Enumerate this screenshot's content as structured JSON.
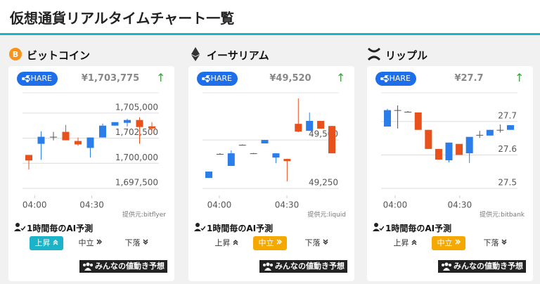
{
  "header": {
    "title": "仮想通貨リアルタイムチャート一覧"
  },
  "cards": [
    {
      "name": "ビットコイン",
      "share": "SHARE",
      "price": "¥1,703,775",
      "trend": "↑",
      "source": "提供元:bitflyer",
      "forecast_title": "1時間毎のAI予測",
      "buttons": [
        "上昇",
        "中立",
        "下落"
      ],
      "selected": 0,
      "vote": "みんなの値動き予想",
      "chart": {
        "type": "candlestick",
        "up_color": "#2b7de9",
        "down_color": "#e8501c",
        "flat_color": "#555555",
        "open": [
          1700830,
          1701940,
          1702640,
          1703130,
          1702220,
          1701530,
          1702570,
          1703750,
          1704030,
          1704310,
          1703680
        ],
        "high": [
          1700830,
          1703190,
          1703130,
          1703820,
          1702570,
          1702570,
          1703960,
          1704100,
          1704440,
          1704580,
          1704100
        ],
        "low": [
          1699380,
          1700350,
          1702290,
          1702290,
          1701740,
          1700560,
          1702570,
          1703750,
          1703680,
          1701940,
          1702990
        ],
        "close": [
          1700280,
          1702640,
          1702640,
          1702290,
          1701880,
          1702570,
          1703750,
          1704100,
          1704310,
          1703610,
          1703470
        ],
        "ylim": [
          1696800,
          1706460
        ],
        "yticks": [
          {
            "value": 1705000,
            "label": "1,705,000"
          },
          {
            "value": 1702500,
            "label": "1,702,500"
          },
          {
            "value": 1700000,
            "label": "1,700,000"
          },
          {
            "value": 1697500,
            "label": "1,697,500"
          }
        ],
        "xticks": [
          {
            "value": 0.47,
            "label": "04:00"
          },
          {
            "value": 5.12,
            "label": "04:30"
          }
        ]
      }
    },
    {
      "name": "イーサリアム",
      "share": "SHARE",
      "price": "¥49,520",
      "trend": "↑",
      "source": "提供元:liquid",
      "forecast_title": "1時間毎のAI予測",
      "buttons": [
        "上昇",
        "中立",
        "下落"
      ],
      "selected": 1,
      "vote": "みんなの値動き予想",
      "chart": {
        "type": "candlestick",
        "up_color": "#2b7de9",
        "down_color": "#e8501c",
        "flat_color": "#555555",
        "open": [
          49304,
          49428,
          49366,
          49475,
          49431,
          49482,
          49409,
          49402,
          49583,
          49547,
          49598,
          49572
        ],
        "high": [
          49337,
          49432,
          49446,
          49477,
          49433,
          49500,
          49431,
          49402,
          49714,
          49641,
          49598,
          49572
        ],
        "low": [
          49304,
          49424,
          49366,
          49473,
          49429,
          49482,
          49380,
          49286,
          49540,
          49547,
          49558,
          49431
        ],
        "close": [
          49337,
          49428,
          49431,
          49475,
          49431,
          49500,
          49431,
          49391,
          49543,
          49598,
          49558,
          49431
        ],
        "ylim": [
          49214,
          49714
        ],
        "yticks": [
          {
            "value": 49500,
            "label": "49,500"
          },
          {
            "value": 49250,
            "label": "49,250"
          }
        ],
        "xticks": [
          {
            "value": 0.94,
            "label": "04:00"
          },
          {
            "value": 6.98,
            "label": "04:30"
          }
        ]
      }
    },
    {
      "name": "リップル",
      "share": "SHARE",
      "price": "¥27.7",
      "trend": "↑",
      "source": "提供元:bitbank",
      "forecast_title": "1時間毎のAI予測",
      "buttons": [
        "上昇",
        "中立",
        "下落"
      ],
      "selected": 1,
      "vote": "みんなの値動き予想",
      "chart": {
        "type": "candlestick",
        "up_color": "#2b7de9",
        "down_color": "#e8501c",
        "flat_color": "#555555",
        "open": [
          27.685,
          27.734,
          27.729,
          27.727,
          27.675,
          27.618,
          27.584,
          27.633,
          27.605,
          27.66,
          27.658,
          27.675,
          27.675
        ],
        "high": [
          27.738,
          27.748,
          27.731,
          27.727,
          27.675,
          27.618,
          27.637,
          27.633,
          27.654,
          27.672,
          27.675,
          27.691,
          27.689
        ],
        "low": [
          27.685,
          27.679,
          27.727,
          27.675,
          27.618,
          27.586,
          27.578,
          27.6,
          27.576,
          27.651,
          27.658,
          27.667,
          27.675
        ],
        "close": [
          27.734,
          27.734,
          27.729,
          27.675,
          27.618,
          27.586,
          27.637,
          27.6,
          27.654,
          27.66,
          27.675,
          27.675,
          27.689
        ],
        "ylim": [
          27.479,
          27.769
        ],
        "yticks": [
          27.7,
          27.6,
          27.5
        ],
        "xticks": [
          {
            "value": 0.75,
            "label": "04:00"
          },
          {
            "value": 7.05,
            "label": "04:30"
          }
        ]
      }
    }
  ]
}
